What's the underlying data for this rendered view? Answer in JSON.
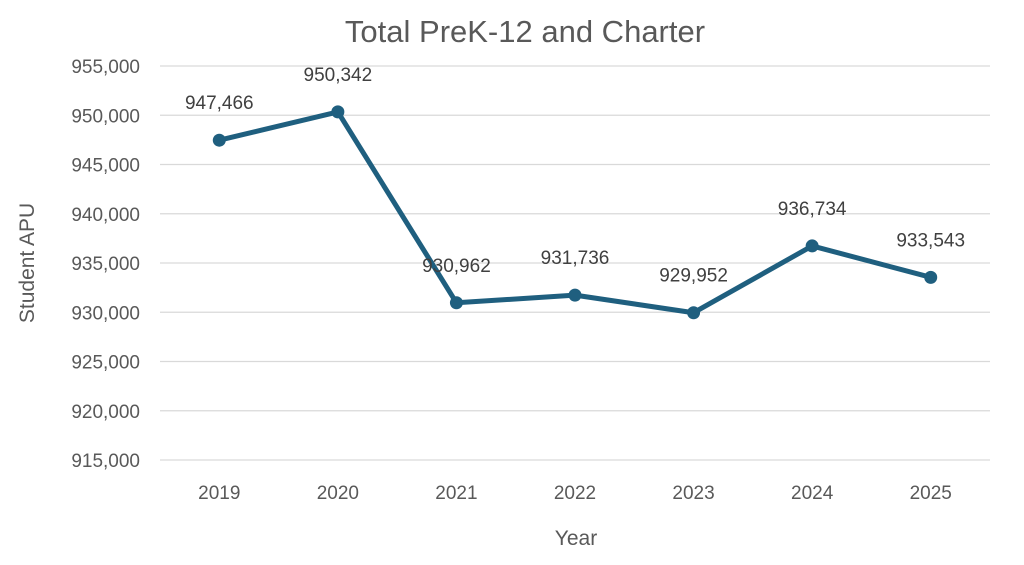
{
  "chart_data": {
    "type": "line",
    "title": "Total PreK-12 and Charter",
    "xlabel": "Year",
    "ylabel": "Student APU",
    "categories": [
      "2019",
      "2020",
      "2021",
      "2022",
      "2023",
      "2024",
      "2025"
    ],
    "series": [
      {
        "values": [
          947466,
          950342,
          930962,
          931736,
          929952,
          936734,
          933543
        ],
        "color": "#1f5f7f"
      }
    ],
    "data_labels": [
      "947,466",
      "950,342",
      "930,962",
      "931,736",
      "929,952",
      "936,734",
      "933,543"
    ],
    "ylim": [
      915000,
      955000
    ],
    "y_ticks": [
      915000,
      920000,
      925000,
      930000,
      935000,
      940000,
      945000,
      950000,
      955000
    ],
    "y_tick_labels": [
      "915,000",
      "920,000",
      "925,000",
      "930,000",
      "935,000",
      "940,000",
      "945,000",
      "950,000",
      "955,000"
    ],
    "grid": true,
    "legend": "none",
    "colors": {
      "line": "#1f5f7f",
      "grid": "#d9d9d9",
      "text": "#595959"
    }
  }
}
